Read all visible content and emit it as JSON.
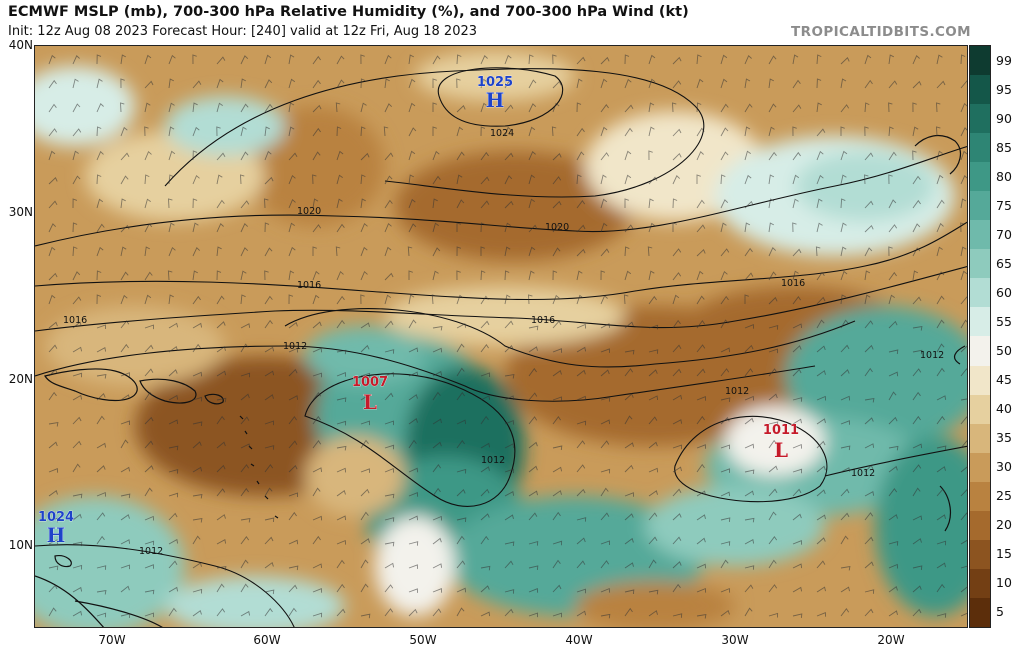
{
  "header": {
    "title": "ECMWF MSLP (mb), 700-300 hPa Relative Humidity (%), and 700-300 hPa Wind (kt)",
    "subtitle": "Init: 12z Aug 08 2023   Forecast Hour: [240]   valid at 12z Fri, Aug 18 2023",
    "brand": "TROPICALTIDBITS.COM"
  },
  "axes": {
    "lat_labels": [
      "40N",
      "30N",
      "20N",
      "10N"
    ],
    "lon_labels": [
      "70W",
      "60W",
      "50W",
      "40W",
      "30W",
      "20W"
    ]
  },
  "colorbar": {
    "labels": [
      "99",
      "95",
      "90",
      "85",
      "80",
      "75",
      "70",
      "65",
      "60",
      "55",
      "50",
      "45",
      "40",
      "35",
      "30",
      "25",
      "20",
      "15",
      "10",
      "5"
    ],
    "colors": [
      "#0e3b30",
      "#145749",
      "#1f6f5f",
      "#2e8574",
      "#3e9886",
      "#55a999",
      "#6fbaab",
      "#8ecbbd",
      "#b2ddd4",
      "#d7ede7",
      "#f3f2ec",
      "#f1e6c9",
      "#e6d09f",
      "#d8b67b",
      "#c99b5a",
      "#b98240",
      "#a56a2d",
      "#8c5420",
      "#733f14",
      "#5c2e0b"
    ]
  },
  "pressure_centers": [
    {
      "type": "H",
      "value": "1025",
      "color": "#1e43c9"
    },
    {
      "type": "L",
      "value": "1007",
      "color": "#c51b2a"
    },
    {
      "type": "L",
      "value": "1011",
      "color": "#c51b2a"
    },
    {
      "type": "H",
      "value": "1024",
      "color": "#1e43c9"
    }
  ],
  "isobar_labels": [
    "1024",
    "1020",
    "1020",
    "1016",
    "1016",
    "1016",
    "1016",
    "1012",
    "1012",
    "1012",
    "1012",
    "1012",
    "1012"
  ]
}
